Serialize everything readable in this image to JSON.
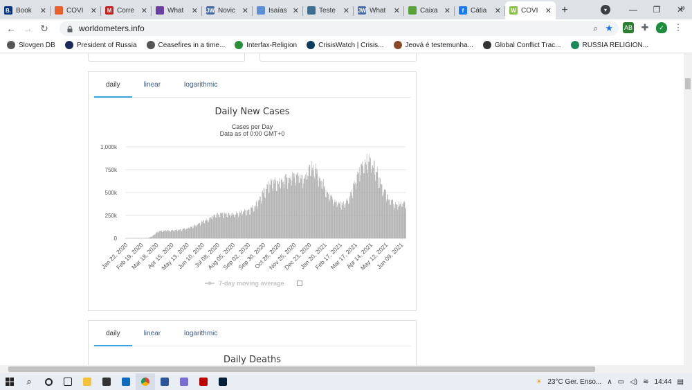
{
  "tabs": [
    {
      "title": "Book",
      "icon": "booking-icon",
      "color": "#003580",
      "glyph": "B."
    },
    {
      "title": "COVI",
      "icon": "worldometers-icon",
      "color": "#e8612c",
      "glyph": ""
    },
    {
      "title": "Corre",
      "icon": "gmail-icon",
      "color": "#c5221f",
      "glyph": "M"
    },
    {
      "title": "What",
      "icon": "chat-icon",
      "color": "#6b3fa0",
      "glyph": ""
    },
    {
      "title": "Novic",
      "icon": "jw-icon",
      "color": "#4a6da7",
      "glyph": "JW"
    },
    {
      "title": "Isaías",
      "icon": "doc-icon",
      "color": "#5b8fd6",
      "glyph": ""
    },
    {
      "title": "Teste",
      "icon": "bird-icon",
      "color": "#3c6e91",
      "glyph": ""
    },
    {
      "title": "What",
      "icon": "jw-icon",
      "color": "#4a6da7",
      "glyph": "JW"
    },
    {
      "title": "Caixa",
      "icon": "leaf-icon",
      "color": "#5aa33b",
      "glyph": ""
    },
    {
      "title": "Cátia",
      "icon": "facebook-icon",
      "color": "#1877f2",
      "glyph": "f"
    },
    {
      "title": "COVI",
      "icon": "worldometers-icon",
      "color": "#8bc34a",
      "glyph": "W",
      "active": true
    }
  ],
  "omnibox": {
    "url": "worldometers.info"
  },
  "bookmarks": [
    {
      "label": "Slovgen DB",
      "icon": "globe-icon",
      "color": "#555"
    },
    {
      "label": "President of Russia",
      "icon": "emblem-icon",
      "color": "#1b2a5a"
    },
    {
      "label": "Ceasefires in a time...",
      "icon": "globe-icon",
      "color": "#555"
    },
    {
      "label": "Interfax-Religion",
      "icon": "script-f-icon",
      "color": "#2a8f3a"
    },
    {
      "label": "CrisisWatch | Crisis...",
      "icon": "crisiswatch-icon",
      "color": "#0b3c5d"
    },
    {
      "label": "Jeová é testemunha...",
      "icon": "person-icon",
      "color": "#8a4a2a"
    },
    {
      "label": "Global Conflict Trac...",
      "icon": "cfr-icon",
      "color": "#333"
    },
    {
      "label": "RUSSIA RELIGION...",
      "icon": "s-icon",
      "color": "#1b8a5a"
    }
  ],
  "card1": {
    "tabs": [
      "daily",
      "linear",
      "logarithmic"
    ],
    "selected": 0,
    "title": "Daily New Cases",
    "subtitle1": "Cases per Day",
    "subtitle2": "Data as of 0:00 GMT+0",
    "legend": "7-day moving average"
  },
  "card2": {
    "tabs": [
      "daily",
      "linear",
      "logarithmic"
    ],
    "selected": 0,
    "title": "Daily Deaths"
  },
  "chart_data": {
    "type": "bar",
    "title": "Daily New Cases",
    "subtitle": "Cases per Day / Data as of 0:00 GMT+0",
    "ylim": [
      0,
      1000000
    ],
    "y_ticks": [
      "0",
      "250k",
      "500k",
      "750k",
      "1,000k"
    ],
    "y_tick_values": [
      0,
      250000,
      500000,
      750000,
      1000000
    ],
    "x_tick_labels": [
      "Jan 22, 2020",
      "Feb 19, 2020",
      "Mar 18, 2020",
      "Apr 15, 2020",
      "May 13, 2020",
      "Jun 10, 2020",
      "Jul 08, 2020",
      "Aug 05, 2020",
      "Sep 02, 2020",
      "Sep 30, 2020",
      "Oct 28, 2020",
      "Nov 25, 2020",
      "Dec 23, 2020",
      "Jan 20, 2021",
      "Feb 17, 2021",
      "Mar 17, 2021",
      "Apr 14, 2021",
      "May 12, 2021",
      "Jun 09, 2021"
    ],
    "grid": true,
    "bar_color": "#a8a8a8",
    "weekly_values": [
      0,
      1000,
      2000,
      2000,
      2000,
      3000,
      5000,
      20000,
      60000,
      80000,
      85000,
      85000,
      88000,
      90000,
      95000,
      100000,
      110000,
      125000,
      140000,
      160000,
      180000,
      200000,
      220000,
      245000,
      260000,
      265000,
      270000,
      265000,
      270000,
      275000,
      285000,
      300000,
      310000,
      330000,
      360000,
      420000,
      480000,
      560000,
      610000,
      630000,
      620000,
      640000,
      660000,
      680000,
      700000,
      720000,
      700000,
      690000,
      720000,
      800000,
      780000,
      700000,
      620000,
      540000,
      470000,
      410000,
      400000,
      380000,
      410000,
      460000,
      560000,
      680000,
      800000,
      860000,
      870000,
      850000,
      780000,
      660000,
      540000,
      470000,
      410000,
      380000,
      380000,
      390000
    ]
  },
  "taskbar": {
    "weather": "23°C  Ger. Enso...",
    "clock": "14:44"
  }
}
